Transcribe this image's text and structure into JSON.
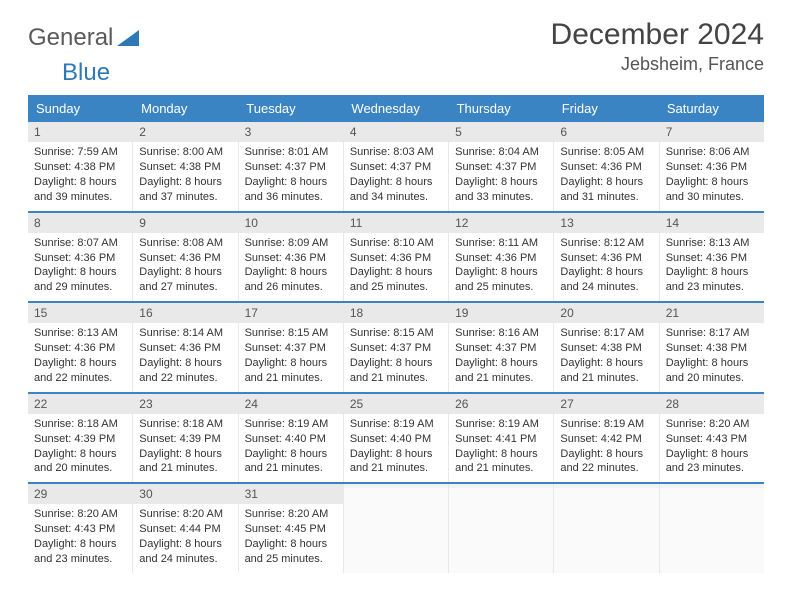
{
  "brand": {
    "part1": "General",
    "part2": "Blue"
  },
  "title": "December 2024",
  "location": "Jebsheim, France",
  "colors": {
    "header_bg": "#3b84c4",
    "header_text": "#ffffff",
    "daynum_bg": "#e9e9e9",
    "week_border": "#3b84c4",
    "text": "#333333",
    "background": "#ffffff"
  },
  "day_names": [
    "Sunday",
    "Monday",
    "Tuesday",
    "Wednesday",
    "Thursday",
    "Friday",
    "Saturday"
  ],
  "weeks": [
    [
      {
        "n": "1",
        "sr": "Sunrise: 7:59 AM",
        "ss": "Sunset: 4:38 PM",
        "d1": "Daylight: 8 hours",
        "d2": "and 39 minutes."
      },
      {
        "n": "2",
        "sr": "Sunrise: 8:00 AM",
        "ss": "Sunset: 4:38 PM",
        "d1": "Daylight: 8 hours",
        "d2": "and 37 minutes."
      },
      {
        "n": "3",
        "sr": "Sunrise: 8:01 AM",
        "ss": "Sunset: 4:37 PM",
        "d1": "Daylight: 8 hours",
        "d2": "and 36 minutes."
      },
      {
        "n": "4",
        "sr": "Sunrise: 8:03 AM",
        "ss": "Sunset: 4:37 PM",
        "d1": "Daylight: 8 hours",
        "d2": "and 34 minutes."
      },
      {
        "n": "5",
        "sr": "Sunrise: 8:04 AM",
        "ss": "Sunset: 4:37 PM",
        "d1": "Daylight: 8 hours",
        "d2": "and 33 minutes."
      },
      {
        "n": "6",
        "sr": "Sunrise: 8:05 AM",
        "ss": "Sunset: 4:36 PM",
        "d1": "Daylight: 8 hours",
        "d2": "and 31 minutes."
      },
      {
        "n": "7",
        "sr": "Sunrise: 8:06 AM",
        "ss": "Sunset: 4:36 PM",
        "d1": "Daylight: 8 hours",
        "d2": "and 30 minutes."
      }
    ],
    [
      {
        "n": "8",
        "sr": "Sunrise: 8:07 AM",
        "ss": "Sunset: 4:36 PM",
        "d1": "Daylight: 8 hours",
        "d2": "and 29 minutes."
      },
      {
        "n": "9",
        "sr": "Sunrise: 8:08 AM",
        "ss": "Sunset: 4:36 PM",
        "d1": "Daylight: 8 hours",
        "d2": "and 27 minutes."
      },
      {
        "n": "10",
        "sr": "Sunrise: 8:09 AM",
        "ss": "Sunset: 4:36 PM",
        "d1": "Daylight: 8 hours",
        "d2": "and 26 minutes."
      },
      {
        "n": "11",
        "sr": "Sunrise: 8:10 AM",
        "ss": "Sunset: 4:36 PM",
        "d1": "Daylight: 8 hours",
        "d2": "and 25 minutes."
      },
      {
        "n": "12",
        "sr": "Sunrise: 8:11 AM",
        "ss": "Sunset: 4:36 PM",
        "d1": "Daylight: 8 hours",
        "d2": "and 25 minutes."
      },
      {
        "n": "13",
        "sr": "Sunrise: 8:12 AM",
        "ss": "Sunset: 4:36 PM",
        "d1": "Daylight: 8 hours",
        "d2": "and 24 minutes."
      },
      {
        "n": "14",
        "sr": "Sunrise: 8:13 AM",
        "ss": "Sunset: 4:36 PM",
        "d1": "Daylight: 8 hours",
        "d2": "and 23 minutes."
      }
    ],
    [
      {
        "n": "15",
        "sr": "Sunrise: 8:13 AM",
        "ss": "Sunset: 4:36 PM",
        "d1": "Daylight: 8 hours",
        "d2": "and 22 minutes."
      },
      {
        "n": "16",
        "sr": "Sunrise: 8:14 AM",
        "ss": "Sunset: 4:36 PM",
        "d1": "Daylight: 8 hours",
        "d2": "and 22 minutes."
      },
      {
        "n": "17",
        "sr": "Sunrise: 8:15 AM",
        "ss": "Sunset: 4:37 PM",
        "d1": "Daylight: 8 hours",
        "d2": "and 21 minutes."
      },
      {
        "n": "18",
        "sr": "Sunrise: 8:15 AM",
        "ss": "Sunset: 4:37 PM",
        "d1": "Daylight: 8 hours",
        "d2": "and 21 minutes."
      },
      {
        "n": "19",
        "sr": "Sunrise: 8:16 AM",
        "ss": "Sunset: 4:37 PM",
        "d1": "Daylight: 8 hours",
        "d2": "and 21 minutes."
      },
      {
        "n": "20",
        "sr": "Sunrise: 8:17 AM",
        "ss": "Sunset: 4:38 PM",
        "d1": "Daylight: 8 hours",
        "d2": "and 21 minutes."
      },
      {
        "n": "21",
        "sr": "Sunrise: 8:17 AM",
        "ss": "Sunset: 4:38 PM",
        "d1": "Daylight: 8 hours",
        "d2": "and 20 minutes."
      }
    ],
    [
      {
        "n": "22",
        "sr": "Sunrise: 8:18 AM",
        "ss": "Sunset: 4:39 PM",
        "d1": "Daylight: 8 hours",
        "d2": "and 20 minutes."
      },
      {
        "n": "23",
        "sr": "Sunrise: 8:18 AM",
        "ss": "Sunset: 4:39 PM",
        "d1": "Daylight: 8 hours",
        "d2": "and 21 minutes."
      },
      {
        "n": "24",
        "sr": "Sunrise: 8:19 AM",
        "ss": "Sunset: 4:40 PM",
        "d1": "Daylight: 8 hours",
        "d2": "and 21 minutes."
      },
      {
        "n": "25",
        "sr": "Sunrise: 8:19 AM",
        "ss": "Sunset: 4:40 PM",
        "d1": "Daylight: 8 hours",
        "d2": "and 21 minutes."
      },
      {
        "n": "26",
        "sr": "Sunrise: 8:19 AM",
        "ss": "Sunset: 4:41 PM",
        "d1": "Daylight: 8 hours",
        "d2": "and 21 minutes."
      },
      {
        "n": "27",
        "sr": "Sunrise: 8:19 AM",
        "ss": "Sunset: 4:42 PM",
        "d1": "Daylight: 8 hours",
        "d2": "and 22 minutes."
      },
      {
        "n": "28",
        "sr": "Sunrise: 8:20 AM",
        "ss": "Sunset: 4:43 PM",
        "d1": "Daylight: 8 hours",
        "d2": "and 23 minutes."
      }
    ],
    [
      {
        "n": "29",
        "sr": "Sunrise: 8:20 AM",
        "ss": "Sunset: 4:43 PM",
        "d1": "Daylight: 8 hours",
        "d2": "and 23 minutes."
      },
      {
        "n": "30",
        "sr": "Sunrise: 8:20 AM",
        "ss": "Sunset: 4:44 PM",
        "d1": "Daylight: 8 hours",
        "d2": "and 24 minutes."
      },
      {
        "n": "31",
        "sr": "Sunrise: 8:20 AM",
        "ss": "Sunset: 4:45 PM",
        "d1": "Daylight: 8 hours",
        "d2": "and 25 minutes."
      },
      {
        "empty": true
      },
      {
        "empty": true
      },
      {
        "empty": true
      },
      {
        "empty": true
      }
    ]
  ]
}
